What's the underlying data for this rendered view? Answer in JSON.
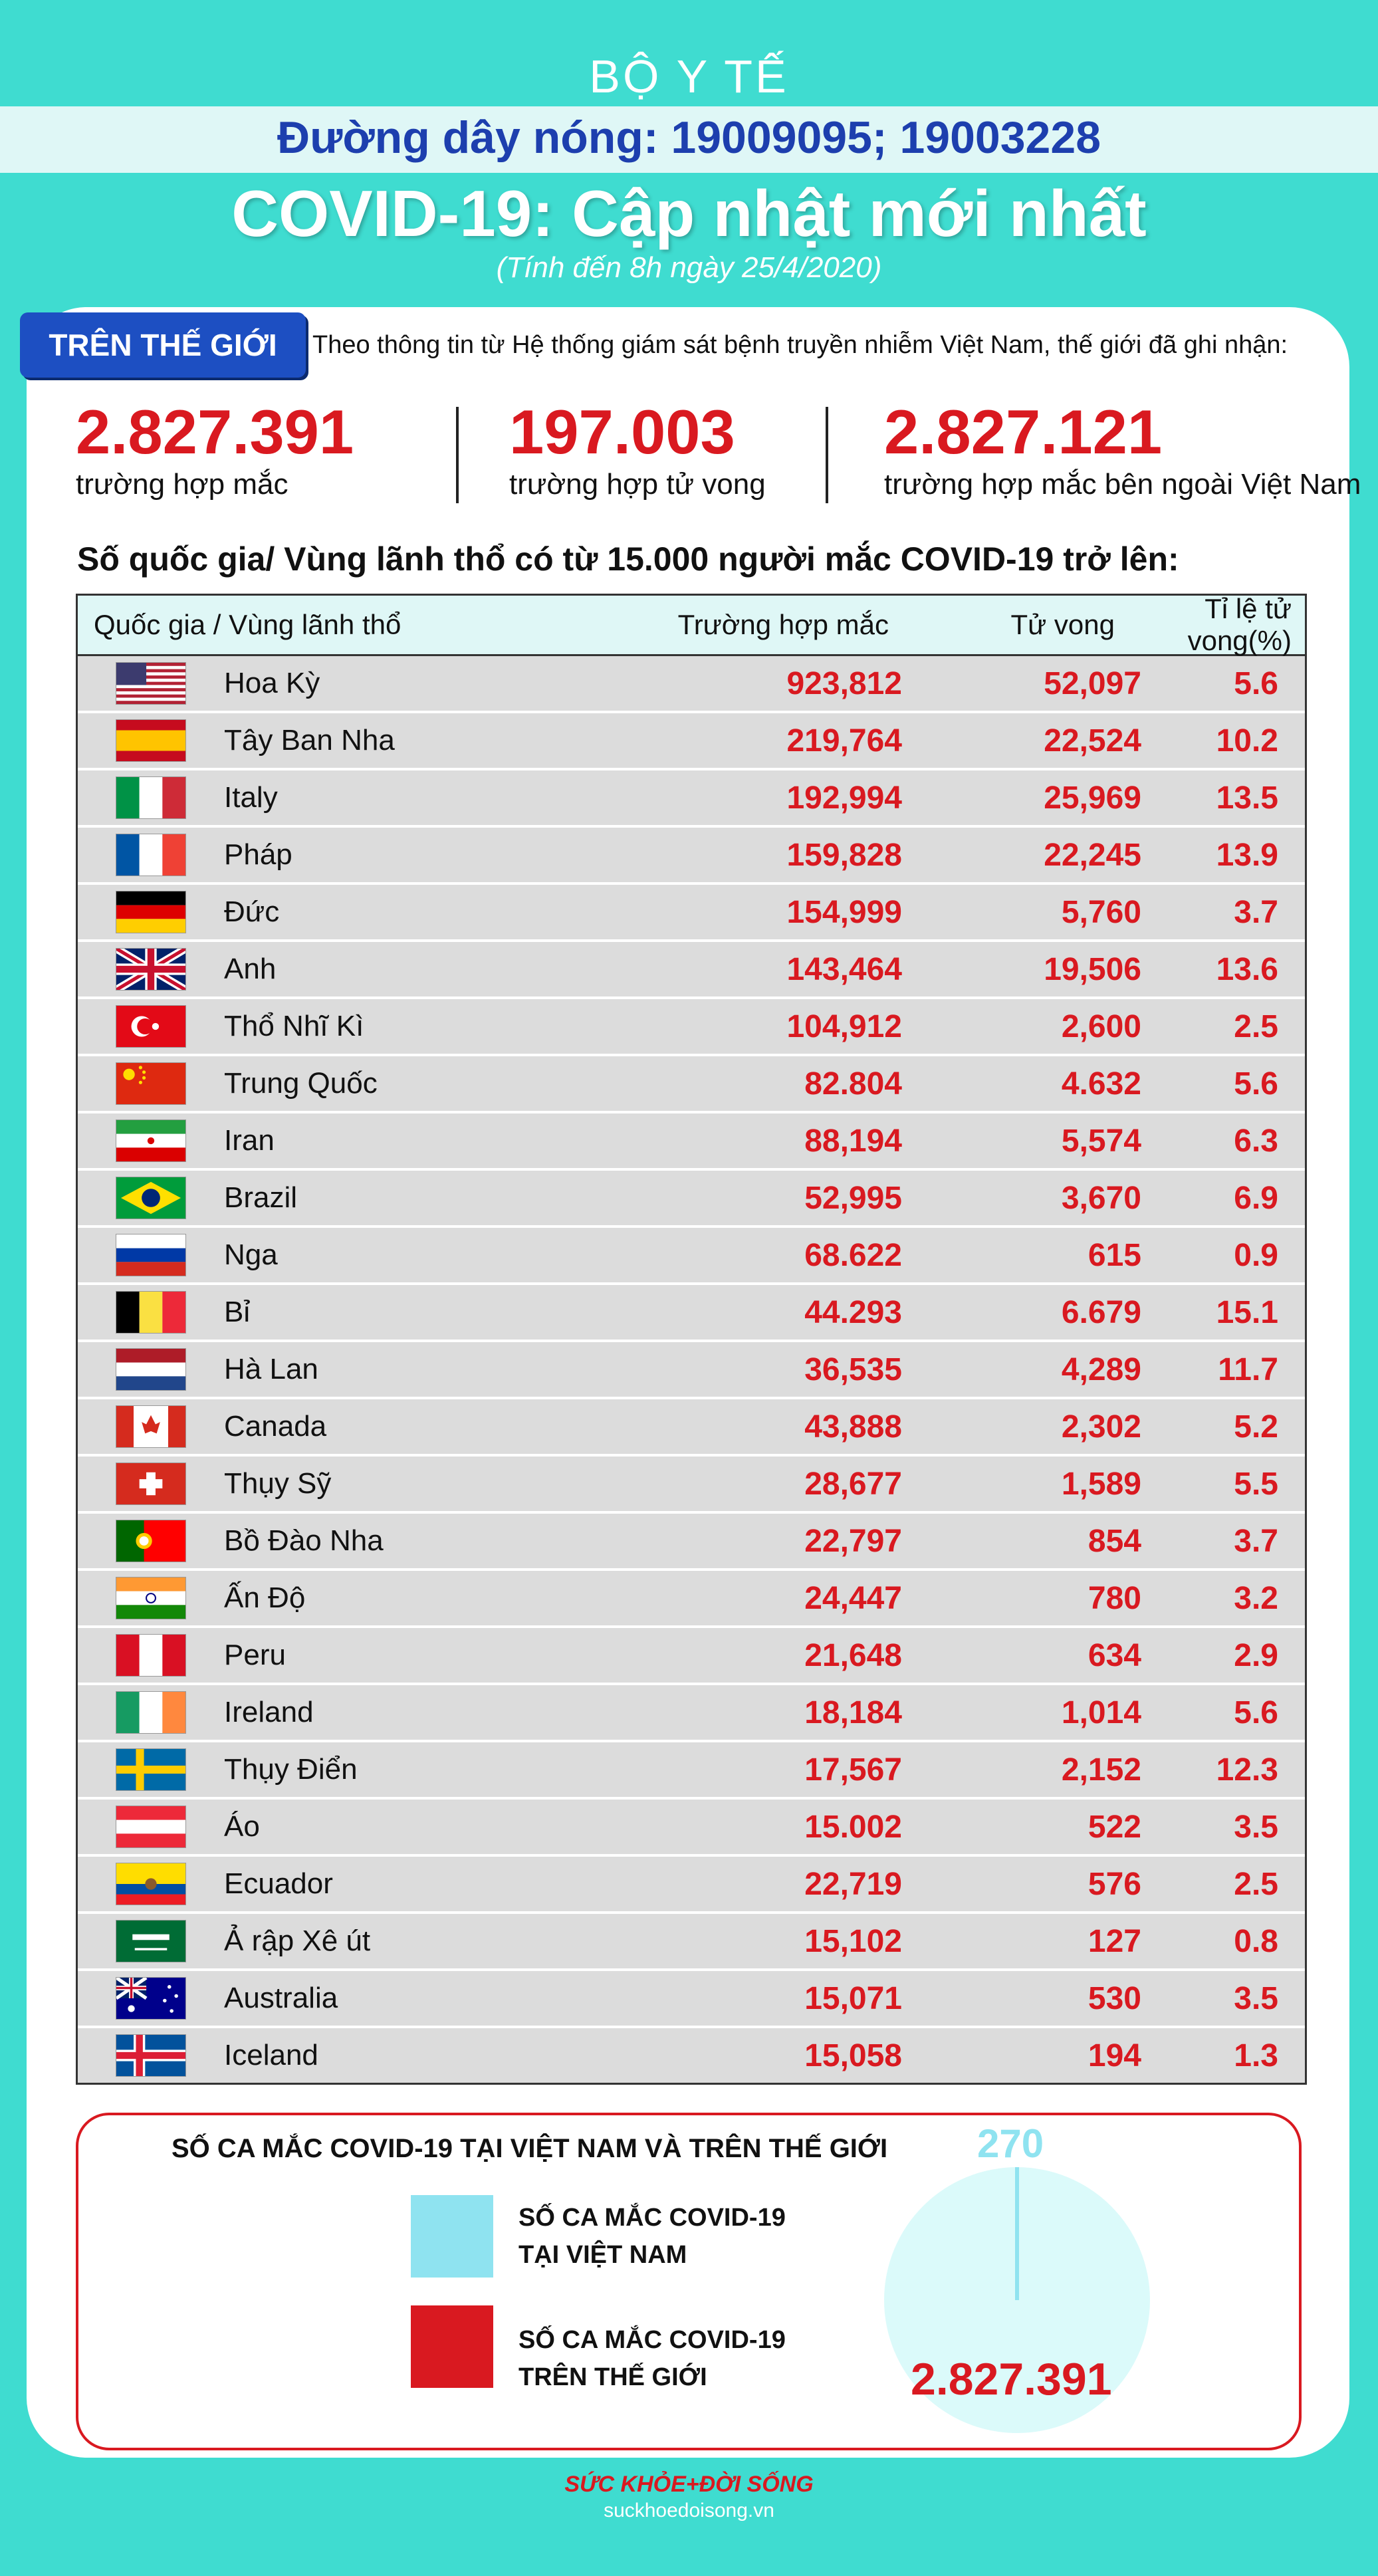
{
  "header": {
    "org": "BỘ Y TẾ",
    "hotline": "Đường dây nóng: 19009095; 19003228",
    "title": "COVID-19: Cập nhật mới nhất",
    "update_time": "(Tính đến 8h ngày 25/4/2020)"
  },
  "world": {
    "badge": "TRÊN THẾ GIỚI",
    "intro": "Theo thông tin từ Hệ thống giám sát bệnh truyền nhiễm Việt Nam, thế giới đã ghi nhận:",
    "stats": [
      {
        "value": "2.827.391",
        "label": "trường hợp mắc"
      },
      {
        "value": "197.003",
        "label": "trường hợp tử vong"
      },
      {
        "value": "2.827.121",
        "label": "trường hợp mắc bên ngoài Việt Nam"
      }
    ]
  },
  "table": {
    "heading": "Số quốc gia/ Vùng lãnh thổ có từ 15.000 người mắc COVID-19 trở lên:",
    "columns": {
      "country": "Quốc gia / Vùng lãnh thổ",
      "cases": "Trường hợp mắc",
      "deaths": "Tử vong",
      "rate": "Tỉ lệ tử vong(%)"
    },
    "rows": [
      {
        "flag": "flag-usa-icon",
        "name": "Hoa Kỳ",
        "cases": "923,812",
        "deaths": "52,097",
        "rate": "5.6"
      },
      {
        "flag": "flag-spain-icon",
        "name": "Tây Ban Nha",
        "cases": "219,764",
        "deaths": "22,524",
        "rate": "10.2"
      },
      {
        "flag": "flag-italy-icon",
        "name": "Italy",
        "cases": "192,994",
        "deaths": "25,969",
        "rate": "13.5"
      },
      {
        "flag": "flag-france-icon",
        "name": "Pháp",
        "cases": "159,828",
        "deaths": "22,245",
        "rate": "13.9"
      },
      {
        "flag": "flag-germany-icon",
        "name": "Đức",
        "cases": "154,999",
        "deaths": "5,760",
        "rate": "3.7"
      },
      {
        "flag": "flag-uk-icon",
        "name": "Anh",
        "cases": "143,464",
        "deaths": "19,506",
        "rate": "13.6"
      },
      {
        "flag": "flag-turkey-icon",
        "name": "Thổ Nhĩ Kì",
        "cases": "104,912",
        "deaths": "2,600",
        "rate": "2.5"
      },
      {
        "flag": "flag-china-icon",
        "name": "Trung Quốc",
        "cases": "82.804",
        "deaths": "4.632",
        "rate": "5.6"
      },
      {
        "flag": "flag-iran-icon",
        "name": "Iran",
        "cases": "88,194",
        "deaths": "5,574",
        "rate": "6.3"
      },
      {
        "flag": "flag-brazil-icon",
        "name": "Brazil",
        "cases": "52,995",
        "deaths": "3,670",
        "rate": "6.9"
      },
      {
        "flag": "flag-russia-icon",
        "name": "Nga",
        "cases": "68.622",
        "deaths": "615",
        "rate": "0.9"
      },
      {
        "flag": "flag-belgium-icon",
        "name": "Bỉ",
        "cases": "44.293",
        "deaths": "6.679",
        "rate": "15.1"
      },
      {
        "flag": "flag-netherlands-icon",
        "name": "Hà Lan",
        "cases": "36,535",
        "deaths": "4,289",
        "rate": "11.7"
      },
      {
        "flag": "flag-canada-icon",
        "name": "Canada",
        "cases": "43,888",
        "deaths": "2,302",
        "rate": "5.2"
      },
      {
        "flag": "flag-switzerland-icon",
        "name": "Thụy Sỹ",
        "cases": "28,677",
        "deaths": "1,589",
        "rate": "5.5"
      },
      {
        "flag": "flag-portugal-icon",
        "name": "Bồ Đào Nha",
        "cases": "22,797",
        "deaths": "854",
        "rate": "3.7"
      },
      {
        "flag": "flag-india-icon",
        "name": "Ấn Độ",
        "cases": "24,447",
        "deaths": "780",
        "rate": "3.2"
      },
      {
        "flag": "flag-peru-icon",
        "name": "Peru",
        "cases": "21,648",
        "deaths": "634",
        "rate": "2.9"
      },
      {
        "flag": "flag-ireland-icon",
        "name": "Ireland",
        "cases": "18,184",
        "deaths": "1,014",
        "rate": "5.6"
      },
      {
        "flag": "flag-sweden-icon",
        "name": "Thụy Điển",
        "cases": "17,567",
        "deaths": "2,152",
        "rate": "12.3"
      },
      {
        "flag": "flag-austria-icon",
        "name": "Áo",
        "cases": "15.002",
        "deaths": "522",
        "rate": "3.5"
      },
      {
        "flag": "flag-ecuador-icon",
        "name": "Ecuador",
        "cases": "22,719",
        "deaths": "576",
        "rate": "2.5"
      },
      {
        "flag": "flag-saudi-arabia-icon",
        "name": "Ả rập Xê út",
        "cases": "15,102",
        "deaths": "127",
        "rate": "0.8"
      },
      {
        "flag": "flag-australia-icon",
        "name": "Australia",
        "cases": "15,071",
        "deaths": "530",
        "rate": "3.5"
      },
      {
        "flag": "flag-iceland-icon",
        "name": "Iceland",
        "cases": "15,058",
        "deaths": "194",
        "rate": "1.3"
      }
    ]
  },
  "comparison": {
    "title": "SỐ CA MẮC COVID-19 TẠI VIỆT NAM VÀ TRÊN THẾ GIỚI",
    "legend": [
      {
        "line1": "SỐ CA MẮC COVID-19",
        "line2": "TẠI VIỆT NAM",
        "color": "#8fe3f0"
      },
      {
        "line1": "SỐ CA MẮC COVID-19",
        "line2": "TRÊN THẾ GIỚI",
        "color": "#d91920"
      }
    ],
    "vn_value": "270",
    "world_value": "2.827.391"
  },
  "footer": {
    "brand": "SỨC KHỎE+ĐỜI SỐNG",
    "url": "suckhoedoisong.vn"
  },
  "colors": {
    "background": "#3fdcd0",
    "accent_red": "#d91920",
    "accent_blue": "#1d4fc2"
  }
}
